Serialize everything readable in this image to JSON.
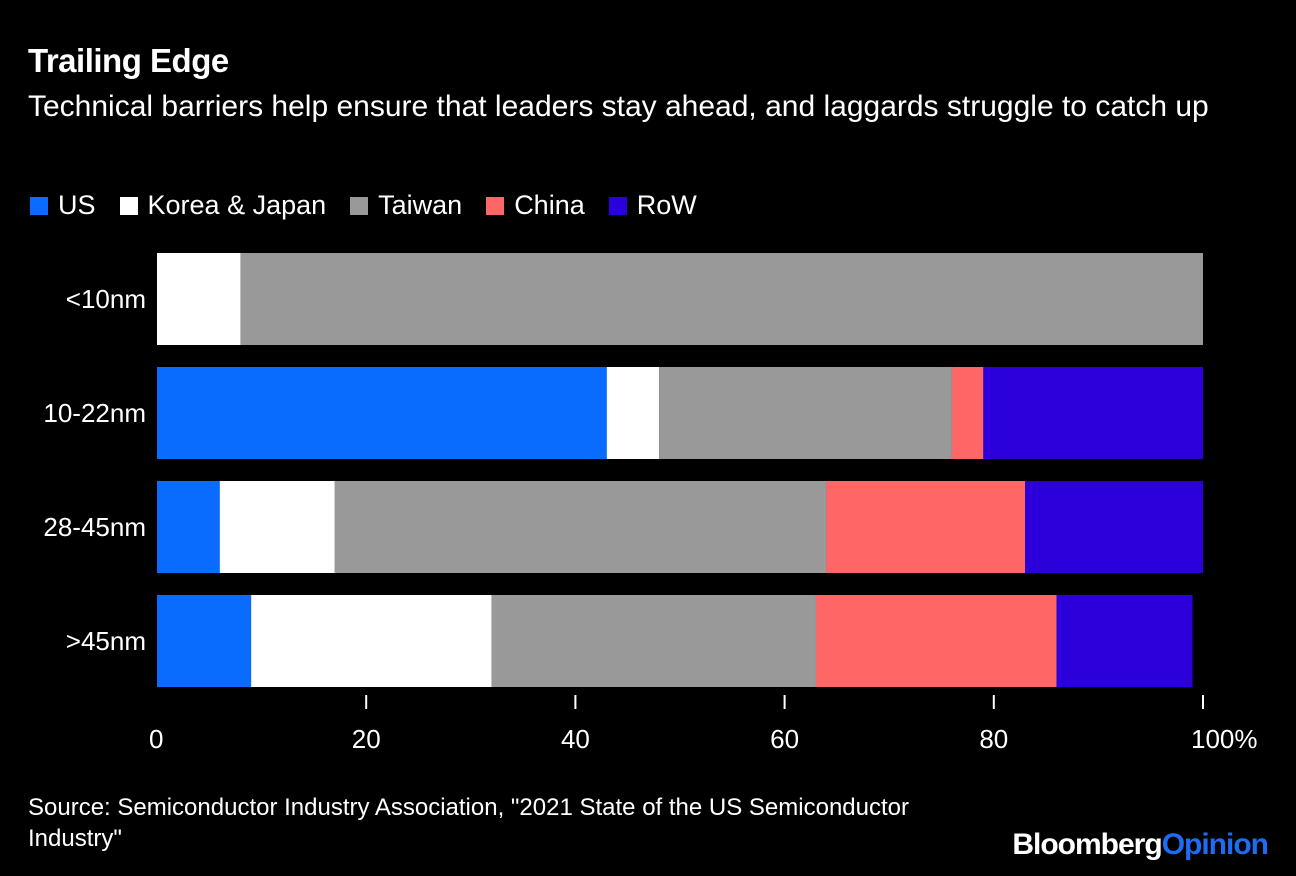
{
  "chart_data": {
    "type": "bar",
    "orientation": "horizontal",
    "stacked": true,
    "title": "Trailing Edge",
    "subtitle": "Technical barriers help ensure that leaders stay ahead, and laggards struggle to catch up",
    "categories": [
      "<10nm",
      "10-22nm",
      "28-45nm",
      ">45nm"
    ],
    "series": [
      {
        "name": "US",
        "color": "#0a6cff",
        "values": [
          0,
          43,
          6,
          9
        ]
      },
      {
        "name": "Korea & Japan",
        "color": "#ffffff",
        "values": [
          8,
          5,
          11,
          23
        ]
      },
      {
        "name": "Taiwan",
        "color": "#999999",
        "values": [
          92,
          28,
          47,
          31
        ]
      },
      {
        "name": "China",
        "color": "#ff6666",
        "values": [
          0,
          3,
          19,
          23
        ]
      },
      {
        "name": "RoW",
        "color": "#2b00db",
        "values": [
          0,
          21,
          17,
          13
        ]
      }
    ],
    "xlim": [
      0,
      100
    ],
    "xticks": [
      "0",
      "20",
      "40",
      "60",
      "80",
      "100%"
    ],
    "xlabel": "",
    "ylabel": "",
    "legend_position": "top-left"
  },
  "source": "Source: Semiconductor Industry Association, \"2021 State of the US Semiconductor Industry\"",
  "brand": {
    "part1": "Bloomberg",
    "part2": "Opinion"
  }
}
